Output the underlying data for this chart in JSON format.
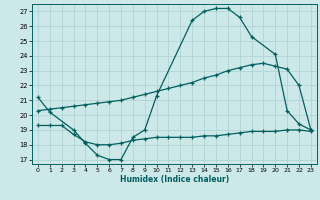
{
  "xlabel": "Humidex (Indice chaleur)",
  "bg_color": "#cde8e8",
  "grid_color": "#b0d4d4",
  "line_color": "#006060",
  "xlim": [
    -0.5,
    23.5
  ],
  "ylim": [
    16.7,
    27.5
  ],
  "yticks": [
    17,
    18,
    19,
    20,
    21,
    22,
    23,
    24,
    25,
    26,
    27
  ],
  "xticks": [
    0,
    1,
    2,
    3,
    4,
    5,
    6,
    7,
    8,
    9,
    10,
    11,
    12,
    13,
    14,
    15,
    16,
    17,
    18,
    19,
    20,
    21,
    22,
    23
  ],
  "line1_x": [
    0,
    1,
    3,
    4,
    5,
    6,
    7,
    8,
    9,
    10,
    13,
    14,
    15,
    16,
    17,
    18,
    20,
    21,
    22,
    23
  ],
  "line1_y": [
    21.2,
    20.2,
    19.0,
    18.1,
    17.3,
    17.0,
    17.0,
    18.5,
    19.0,
    21.3,
    26.4,
    27.0,
    27.2,
    27.2,
    26.6,
    25.3,
    24.1,
    20.3,
    19.4,
    19.0
  ],
  "line2_x": [
    0,
    1,
    2,
    3,
    4,
    5,
    6,
    7,
    8,
    9,
    10,
    11,
    12,
    13,
    14,
    15,
    16,
    17,
    18,
    19,
    20,
    21,
    22,
    23
  ],
  "line2_y": [
    20.3,
    20.4,
    20.5,
    20.6,
    20.7,
    20.8,
    20.9,
    21.0,
    21.2,
    21.4,
    21.6,
    21.8,
    22.0,
    22.2,
    22.5,
    22.7,
    23.0,
    23.2,
    23.4,
    23.5,
    23.3,
    23.1,
    22.0,
    19.0
  ],
  "line3_x": [
    0,
    1,
    2,
    3,
    4,
    5,
    6,
    7,
    8,
    9,
    10,
    11,
    12,
    13,
    14,
    15,
    16,
    17,
    18,
    19,
    20,
    21,
    22,
    23
  ],
  "line3_y": [
    19.3,
    19.3,
    19.3,
    18.7,
    18.2,
    18.0,
    18.0,
    18.1,
    18.3,
    18.4,
    18.5,
    18.5,
    18.5,
    18.5,
    18.6,
    18.6,
    18.7,
    18.8,
    18.9,
    18.9,
    18.9,
    19.0,
    19.0,
    18.9
  ]
}
